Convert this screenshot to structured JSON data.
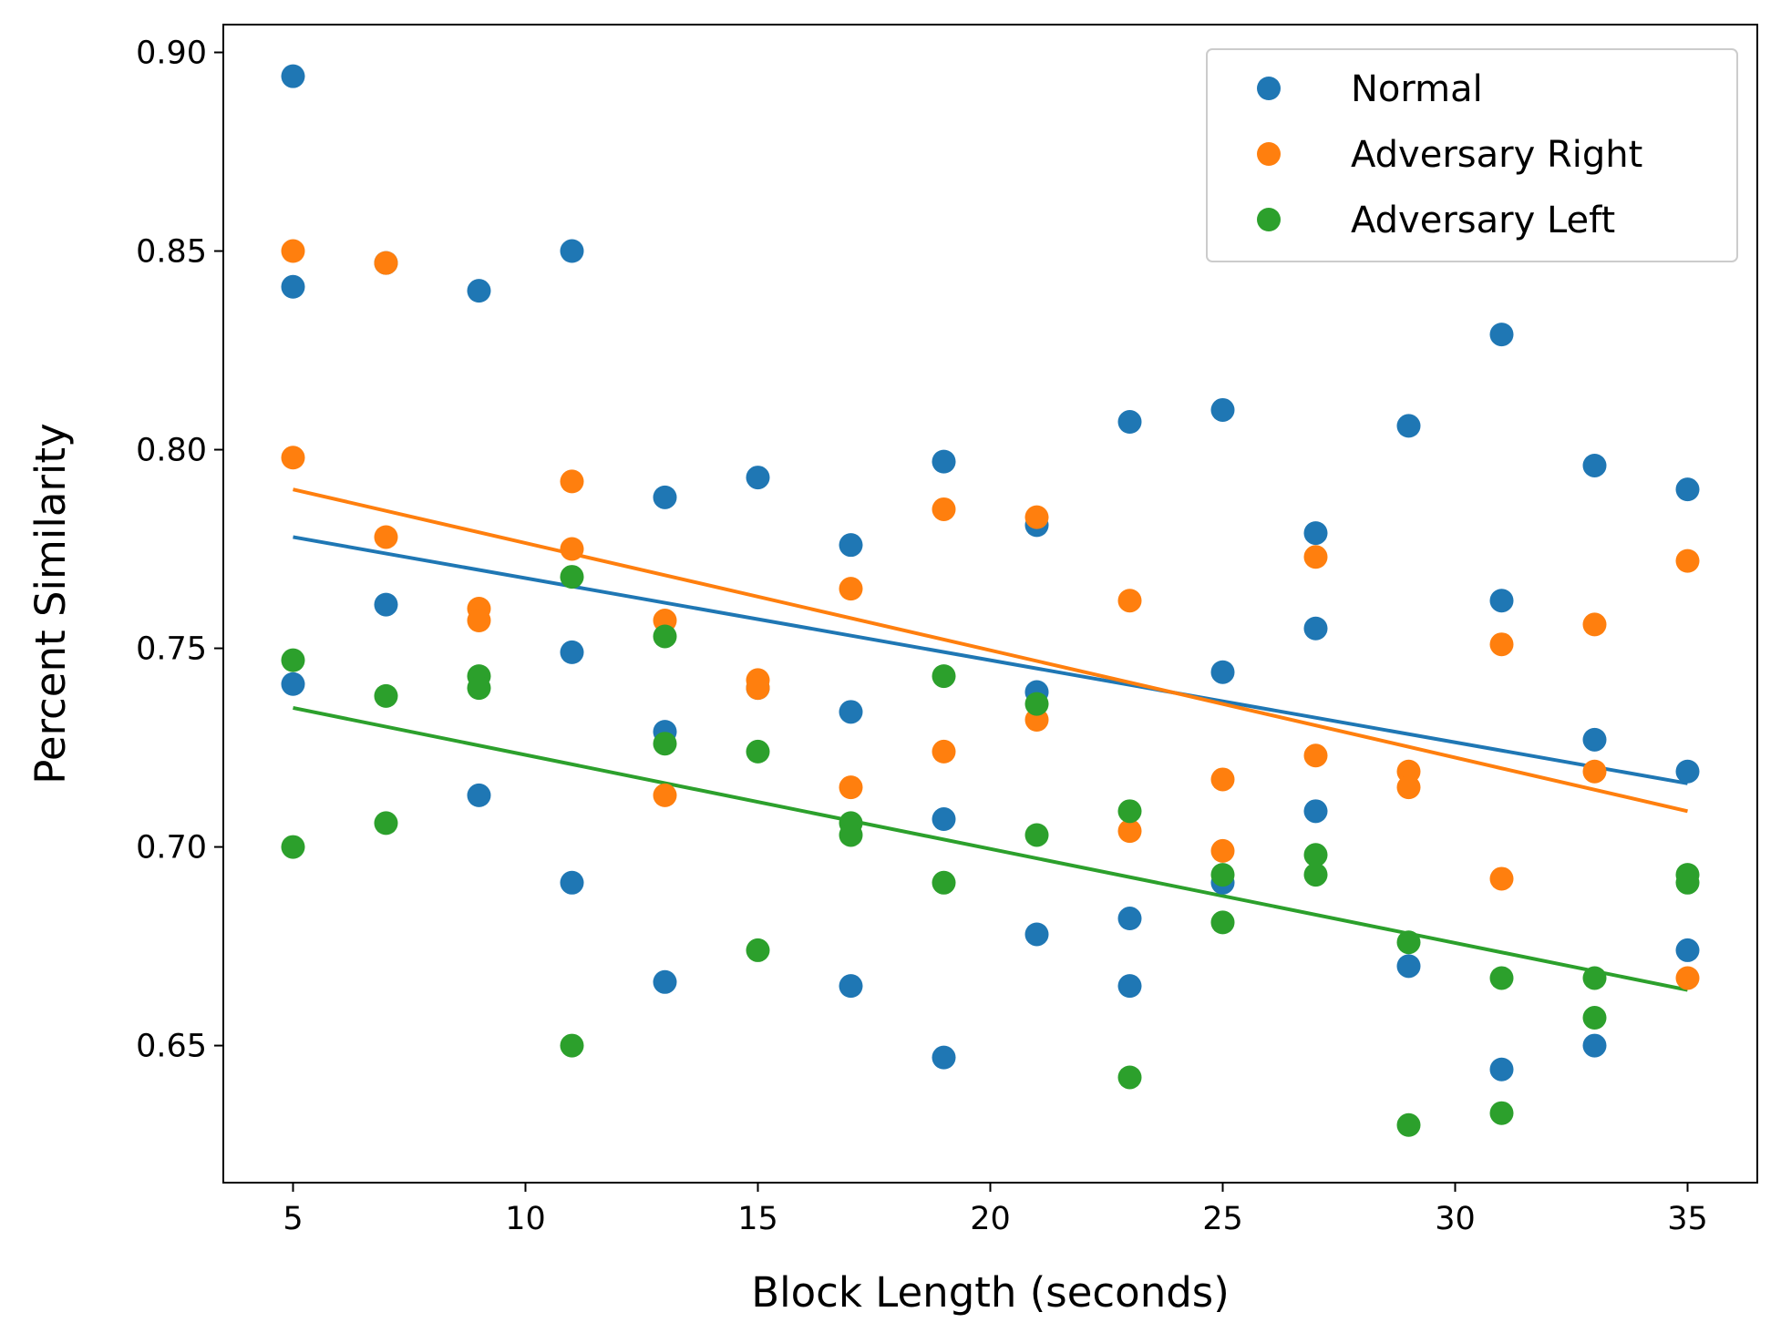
{
  "chart_data": {
    "type": "scatter",
    "title": "",
    "xlabel": "Block Length (seconds)",
    "ylabel": "Percent Similarity",
    "xlim": [
      3.5,
      36.5
    ],
    "ylim": [
      0.6155,
      0.907
    ],
    "xticks": [
      5,
      10,
      15,
      20,
      25,
      30,
      35
    ],
    "yticks": [
      0.65,
      0.7,
      0.75,
      0.8,
      0.85,
      0.9
    ],
    "xtick_labels": [
      "5",
      "10",
      "15",
      "20",
      "25",
      "30",
      "35"
    ],
    "ytick_labels": [
      "0.65",
      "0.70",
      "0.75",
      "0.80",
      "0.85",
      "0.90"
    ],
    "grid": false,
    "legend_position": "top-right",
    "series": [
      {
        "name": "Normal",
        "color": "#1f77b4",
        "points": [
          [
            5,
            0.894
          ],
          [
            5,
            0.841
          ],
          [
            5,
            0.741
          ],
          [
            7,
            0.847
          ],
          [
            7,
            0.761
          ],
          [
            9,
            0.84
          ],
          [
            9,
            0.713
          ],
          [
            11,
            0.85
          ],
          [
            11,
            0.749
          ],
          [
            11,
            0.691
          ],
          [
            13,
            0.788
          ],
          [
            13,
            0.729
          ],
          [
            13,
            0.666
          ],
          [
            15,
            0.793
          ],
          [
            15,
            0.74
          ],
          [
            17,
            0.776
          ],
          [
            17,
            0.734
          ],
          [
            17,
            0.665
          ],
          [
            19,
            0.797
          ],
          [
            19,
            0.707
          ],
          [
            19,
            0.647
          ],
          [
            21,
            0.781
          ],
          [
            21,
            0.739
          ],
          [
            21,
            0.678
          ],
          [
            23,
            0.807
          ],
          [
            23,
            0.682
          ],
          [
            23,
            0.665
          ],
          [
            25,
            0.81
          ],
          [
            25,
            0.744
          ],
          [
            25,
            0.691
          ],
          [
            27,
            0.779
          ],
          [
            27,
            0.755
          ],
          [
            27,
            0.709
          ],
          [
            29,
            0.806
          ],
          [
            29,
            0.67
          ],
          [
            31,
            0.829
          ],
          [
            31,
            0.762
          ],
          [
            31,
            0.644
          ],
          [
            33,
            0.796
          ],
          [
            33,
            0.727
          ],
          [
            33,
            0.65
          ],
          [
            35,
            0.79
          ],
          [
            35,
            0.719
          ],
          [
            35,
            0.674
          ]
        ],
        "trend": [
          [
            5,
            0.778
          ],
          [
            35,
            0.716
          ]
        ]
      },
      {
        "name": "Adversary Right",
        "color": "#ff7f0e",
        "points": [
          [
            5,
            0.85
          ],
          [
            5,
            0.798
          ],
          [
            7,
            0.847
          ],
          [
            7,
            0.778
          ],
          [
            9,
            0.76
          ],
          [
            9,
            0.757
          ],
          [
            11,
            0.792
          ],
          [
            11,
            0.775
          ],
          [
            13,
            0.757
          ],
          [
            13,
            0.713
          ],
          [
            15,
            0.742
          ],
          [
            15,
            0.74
          ],
          [
            17,
            0.765
          ],
          [
            17,
            0.715
          ],
          [
            19,
            0.785
          ],
          [
            19,
            0.724
          ],
          [
            21,
            0.783
          ],
          [
            21,
            0.732
          ],
          [
            23,
            0.762
          ],
          [
            23,
            0.704
          ],
          [
            25,
            0.717
          ],
          [
            25,
            0.699
          ],
          [
            27,
            0.773
          ],
          [
            27,
            0.723
          ],
          [
            29,
            0.719
          ],
          [
            29,
            0.715
          ],
          [
            31,
            0.751
          ],
          [
            31,
            0.692
          ],
          [
            33,
            0.756
          ],
          [
            33,
            0.719
          ],
          [
            35,
            0.772
          ],
          [
            35,
            0.667
          ]
        ],
        "trend": [
          [
            5,
            0.79
          ],
          [
            35,
            0.709
          ]
        ]
      },
      {
        "name": "Adversary Left",
        "color": "#2ca02c",
        "points": [
          [
            5,
            0.747
          ],
          [
            5,
            0.7
          ],
          [
            7,
            0.738
          ],
          [
            7,
            0.706
          ],
          [
            9,
            0.743
          ],
          [
            9,
            0.74
          ],
          [
            11,
            0.768
          ],
          [
            11,
            0.65
          ],
          [
            13,
            0.753
          ],
          [
            13,
            0.726
          ],
          [
            15,
            0.724
          ],
          [
            15,
            0.674
          ],
          [
            17,
            0.706
          ],
          [
            17,
            0.703
          ],
          [
            19,
            0.743
          ],
          [
            19,
            0.691
          ],
          [
            21,
            0.736
          ],
          [
            21,
            0.703
          ],
          [
            23,
            0.709
          ],
          [
            23,
            0.642
          ],
          [
            25,
            0.693
          ],
          [
            25,
            0.681
          ],
          [
            27,
            0.698
          ],
          [
            27,
            0.693
          ],
          [
            29,
            0.676
          ],
          [
            29,
            0.63
          ],
          [
            31,
            0.667
          ],
          [
            31,
            0.633
          ],
          [
            33,
            0.667
          ],
          [
            33,
            0.657
          ],
          [
            35,
            0.693
          ],
          [
            35,
            0.691
          ]
        ],
        "trend": [
          [
            5,
            0.735
          ],
          [
            35,
            0.664
          ]
        ]
      }
    ]
  }
}
